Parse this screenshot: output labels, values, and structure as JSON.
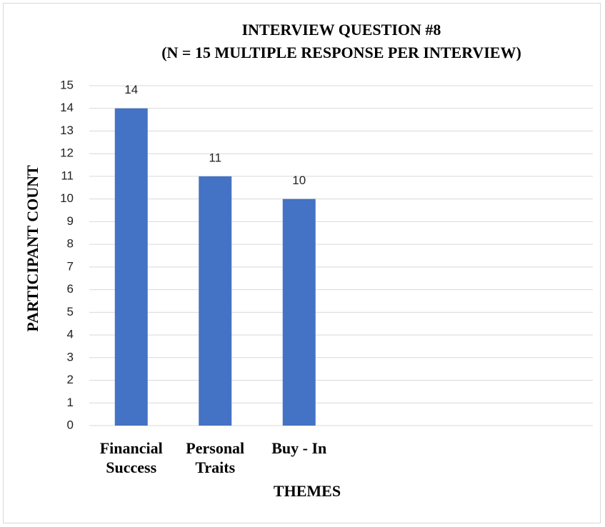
{
  "chart_data": {
    "type": "bar",
    "title": "INTERVIEW QUESTION #8",
    "subtitle": "(N = 15 MULTIPLE RESPONSE PER INTERVIEW)",
    "x_label": "THEMES",
    "y_label": "PARTICIPANT COUNT",
    "categories": [
      "Financial Success",
      "Personal Traits",
      "Buy - In",
      null,
      null,
      null
    ],
    "values": [
      14,
      11,
      10,
      null,
      null,
      null
    ],
    "color": "#4472c4",
    "ylim": [
      0,
      15
    ],
    "yticks": [
      0,
      1,
      2,
      3,
      4,
      5,
      6,
      7,
      8,
      9,
      10,
      11,
      12,
      13,
      14,
      15
    ],
    "grid": true
  }
}
